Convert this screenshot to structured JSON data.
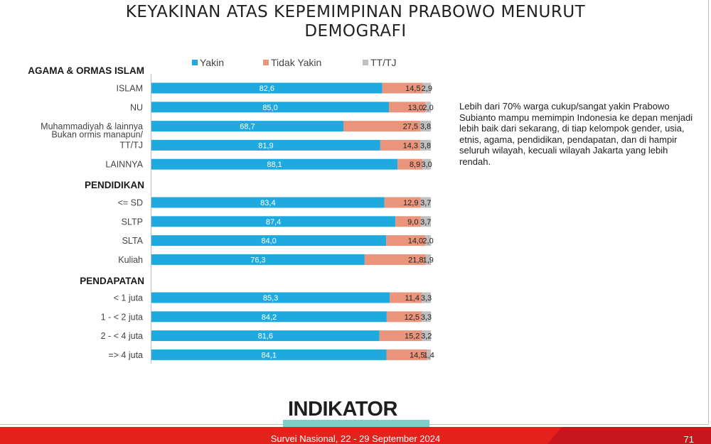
{
  "title_lines": [
    "KEYAKINAN ATAS KEPEMIMPINAN PRABOWO MENURUT",
    "DEMOGRAFI"
  ],
  "colors": {
    "yakin": "#1eaadf",
    "tidak_yakin": "#e9947b",
    "tt_tj": "#bfbfbf",
    "footer": "#e3231b"
  },
  "note": "Lebih dari 70% warga cukup/sangat yakin Prabowo Subianto mampu memimpin Indonesia ke depan menjadi lebih baik dari sekarang, di tiap kelompok gender, usia, etnis, agama, pendidikan, pendapatan, dan di hampir seluruh wilayah, kecuali wilayah Jakarta yang lebih rendah.",
  "logo": "INDIKATOR",
  "footer": {
    "text": "Survei Nasional, 22 - 29 September 2024",
    "page": "71"
  },
  "chart_data": {
    "type": "bar",
    "orientation": "horizontal",
    "stacked": true,
    "normalized": true,
    "legend_position": "top",
    "series": [
      {
        "name": "Yakin"
      },
      {
        "name": "Tidak Yakin"
      },
      {
        "name": "TT/TJ"
      }
    ],
    "groups": [
      {
        "label": "AGAMA & ORMAS ISLAM",
        "rows": [
          {
            "label": [
              "ISLAM"
            ],
            "values": [
              82.6,
              14.5,
              2.9
            ],
            "labels": [
              "82,6",
              "14,5",
              "2,9"
            ]
          },
          {
            "label": [
              "NU"
            ],
            "values": [
              85.0,
              13.0,
              2.0
            ],
            "labels": [
              "85,0",
              "13,0",
              "2,0"
            ]
          },
          {
            "label": [
              "Muhammadiyah & lainnya"
            ],
            "values": [
              68.7,
              27.5,
              3.8
            ],
            "labels": [
              "68,7",
              "27,5",
              "3,8"
            ]
          },
          {
            "label": [
              "Bukan ormis manapun/",
              "TT/TJ"
            ],
            "values": [
              81.9,
              14.3,
              3.8
            ],
            "labels": [
              "81,9",
              "14,3",
              "3,8"
            ]
          },
          {
            "label": [
              "LAINNYA"
            ],
            "values": [
              88.1,
              8.9,
              3.0
            ],
            "labels": [
              "88,1",
              "8,9",
              "3,0"
            ]
          }
        ]
      },
      {
        "label": "PENDIDIKAN",
        "rows": [
          {
            "label": [
              "<= SD"
            ],
            "values": [
              83.4,
              12.9,
              3.7
            ],
            "labels": [
              "83,4",
              "12,9",
              "3,7"
            ]
          },
          {
            "label": [
              "SLTP"
            ],
            "values": [
              87.4,
              9.0,
              3.7
            ],
            "labels": [
              "87,4",
              "9,0",
              "3,7"
            ]
          },
          {
            "label": [
              "SLTA"
            ],
            "values": [
              84.0,
              14.0,
              2.0
            ],
            "labels": [
              "84,0",
              "14,0",
              "2,0"
            ]
          },
          {
            "label": [
              "Kuliah"
            ],
            "values": [
              76.3,
              21.8,
              1.9
            ],
            "labels": [
              "76,3",
              "21,8",
              "1,9"
            ]
          }
        ]
      },
      {
        "label": "PENDAPATAN",
        "rows": [
          {
            "label": [
              "< 1 juta"
            ],
            "values": [
              85.3,
              11.4,
              3.3
            ],
            "labels": [
              "85,3",
              "11,4",
              "3,3"
            ]
          },
          {
            "label": [
              "1 - < 2 juta"
            ],
            "values": [
              84.2,
              12.5,
              3.3
            ],
            "labels": [
              "84,2",
              "12,5",
              "3,3"
            ]
          },
          {
            "label": [
              "2 - < 4 juta"
            ],
            "values": [
              81.6,
              15.2,
              3.2
            ],
            "labels": [
              "81,6",
              "15,2",
              "3,2"
            ]
          },
          {
            "label": [
              "=> 4 juta"
            ],
            "values": [
              84.1,
              14.5,
              1.4
            ],
            "labels": [
              "84,1",
              "14,5",
              "1,4"
            ]
          }
        ]
      }
    ]
  }
}
